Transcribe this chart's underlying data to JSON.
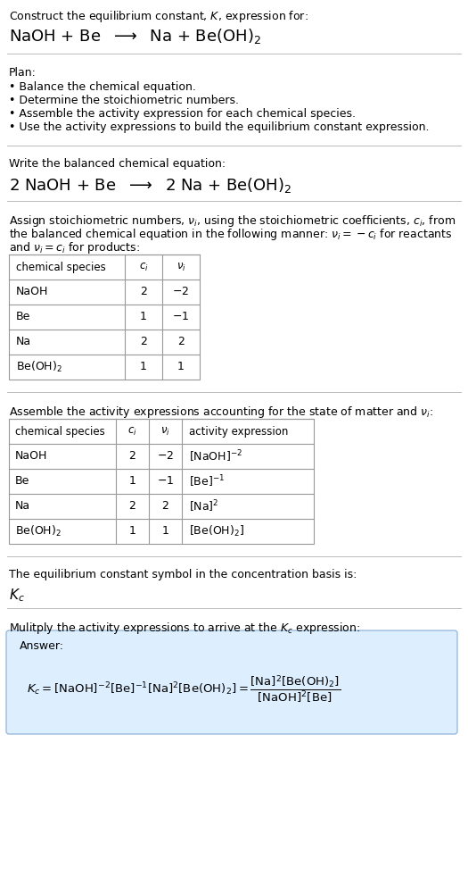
{
  "title_line1": "Construct the equilibrium constant, $K$, expression for:",
  "title_line2": "NaOH + Be  $\\longrightarrow$  Na + Be(OH)$_2$",
  "separator_color": "#bbbbbb",
  "background_color": "#ffffff",
  "plan_header": "Plan:",
  "plan_items": [
    "• Balance the chemical equation.",
    "• Determine the stoichiometric numbers.",
    "• Assemble the activity expression for each chemical species.",
    "• Use the activity expressions to build the equilibrium constant expression."
  ],
  "balanced_eq_header": "Write the balanced chemical equation:",
  "balanced_eq": "2 NaOH + Be  $\\longrightarrow$  2 Na + Be(OH)$_2$",
  "stoich_header_1": "Assign stoichiometric numbers, $\\nu_i$, using the stoichiometric coefficients, $c_i$, from",
  "stoich_header_2": "the balanced chemical equation in the following manner: $\\nu_i = -c_i$ for reactants",
  "stoich_header_3": "and $\\nu_i = c_i$ for products:",
  "table1_headers": [
    "chemical species",
    "$c_i$",
    "$\\nu_i$"
  ],
  "table1_rows": [
    [
      "NaOH",
      "2",
      "$-2$"
    ],
    [
      "Be",
      "1",
      "$-1$"
    ],
    [
      "Na",
      "2",
      "2"
    ],
    [
      "Be(OH)$_2$",
      "1",
      "1"
    ]
  ],
  "activity_header": "Assemble the activity expressions accounting for the state of matter and $\\nu_i$:",
  "table2_headers": [
    "chemical species",
    "$c_i$",
    "$\\nu_i$",
    "activity expression"
  ],
  "table2_rows": [
    [
      "NaOH",
      "2",
      "$-2$",
      "[NaOH]$^{-2}$"
    ],
    [
      "Be",
      "1",
      "$-1$",
      "[Be]$^{-1}$"
    ],
    [
      "Na",
      "2",
      "2",
      "[Na]$^2$"
    ],
    [
      "Be(OH)$_2$",
      "1",
      "1",
      "[Be(OH)$_2$]"
    ]
  ],
  "kc_symbol_header": "The equilibrium constant symbol in the concentration basis is:",
  "kc_symbol": "$K_c$",
  "multiply_header": "Mulitply the activity expressions to arrive at the $K_c$ expression:",
  "answer_label": "Answer:",
  "answer_box_color": "#ddeeff",
  "answer_box_border": "#99bbdd",
  "text_color": "#000000",
  "table_border_color": "#999999",
  "font_size": 9.0,
  "title2_font_size": 13.0,
  "balanced_font_size": 13.0
}
